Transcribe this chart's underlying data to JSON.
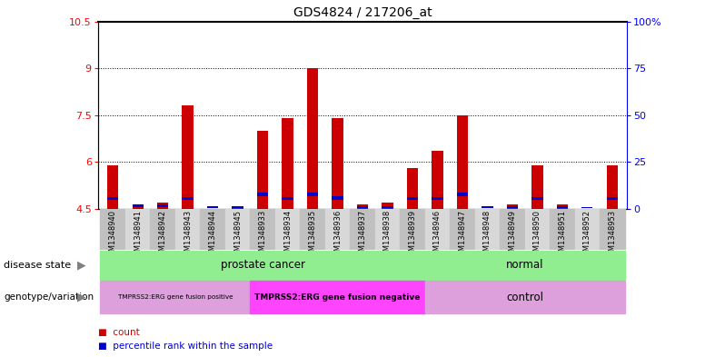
{
  "title": "GDS4824 / 217206_at",
  "samples": [
    "GSM1348940",
    "GSM1348941",
    "GSM1348942",
    "GSM1348943",
    "GSM1348944",
    "GSM1348945",
    "GSM1348933",
    "GSM1348934",
    "GSM1348935",
    "GSM1348936",
    "GSM1348937",
    "GSM1348938",
    "GSM1348939",
    "GSM1348946",
    "GSM1348947",
    "GSM1348948",
    "GSM1348949",
    "GSM1348950",
    "GSM1348951",
    "GSM1348952",
    "GSM1348953"
  ],
  "red_values": [
    5.9,
    4.65,
    4.7,
    7.8,
    4.5,
    4.55,
    7.0,
    7.4,
    9.0,
    7.4,
    4.65,
    4.7,
    5.8,
    6.35,
    7.5,
    4.5,
    4.65,
    5.9,
    4.65,
    4.5,
    5.9
  ],
  "blue_bottoms": [
    4.78,
    4.56,
    4.56,
    4.78,
    4.52,
    4.52,
    4.9,
    4.78,
    4.9,
    4.78,
    4.52,
    4.52,
    4.78,
    4.78,
    4.9,
    4.52,
    4.52,
    4.78,
    4.52,
    4.52,
    4.78
  ],
  "blue_heights": [
    0.1,
    0.07,
    0.07,
    0.1,
    0.06,
    0.06,
    0.12,
    0.1,
    0.12,
    0.12,
    0.06,
    0.06,
    0.1,
    0.1,
    0.12,
    0.06,
    0.06,
    0.1,
    0.06,
    0.03,
    0.1
  ],
  "ymin": 4.5,
  "ymax": 10.5,
  "yticks_left": [
    4.5,
    6.0,
    7.5,
    9.0,
    10.5
  ],
  "ytick_labels_left": [
    "4.5",
    "6",
    "7.5",
    "9",
    "10.5"
  ],
  "yticks_right": [
    0,
    25,
    50,
    75,
    100
  ],
  "ytick_labels_right": [
    "0",
    "25",
    "50",
    "75",
    "100%"
  ],
  "bar_width": 0.45,
  "red_color": "#CC0000",
  "blue_color": "#0000CC",
  "green_light": "#90EE90",
  "magenta_light": "#DDA0DD",
  "magenta_bright": "#FF44FF",
  "label_bg_dark": "#C0C0C0",
  "label_bg_light": "#D8D8D8"
}
